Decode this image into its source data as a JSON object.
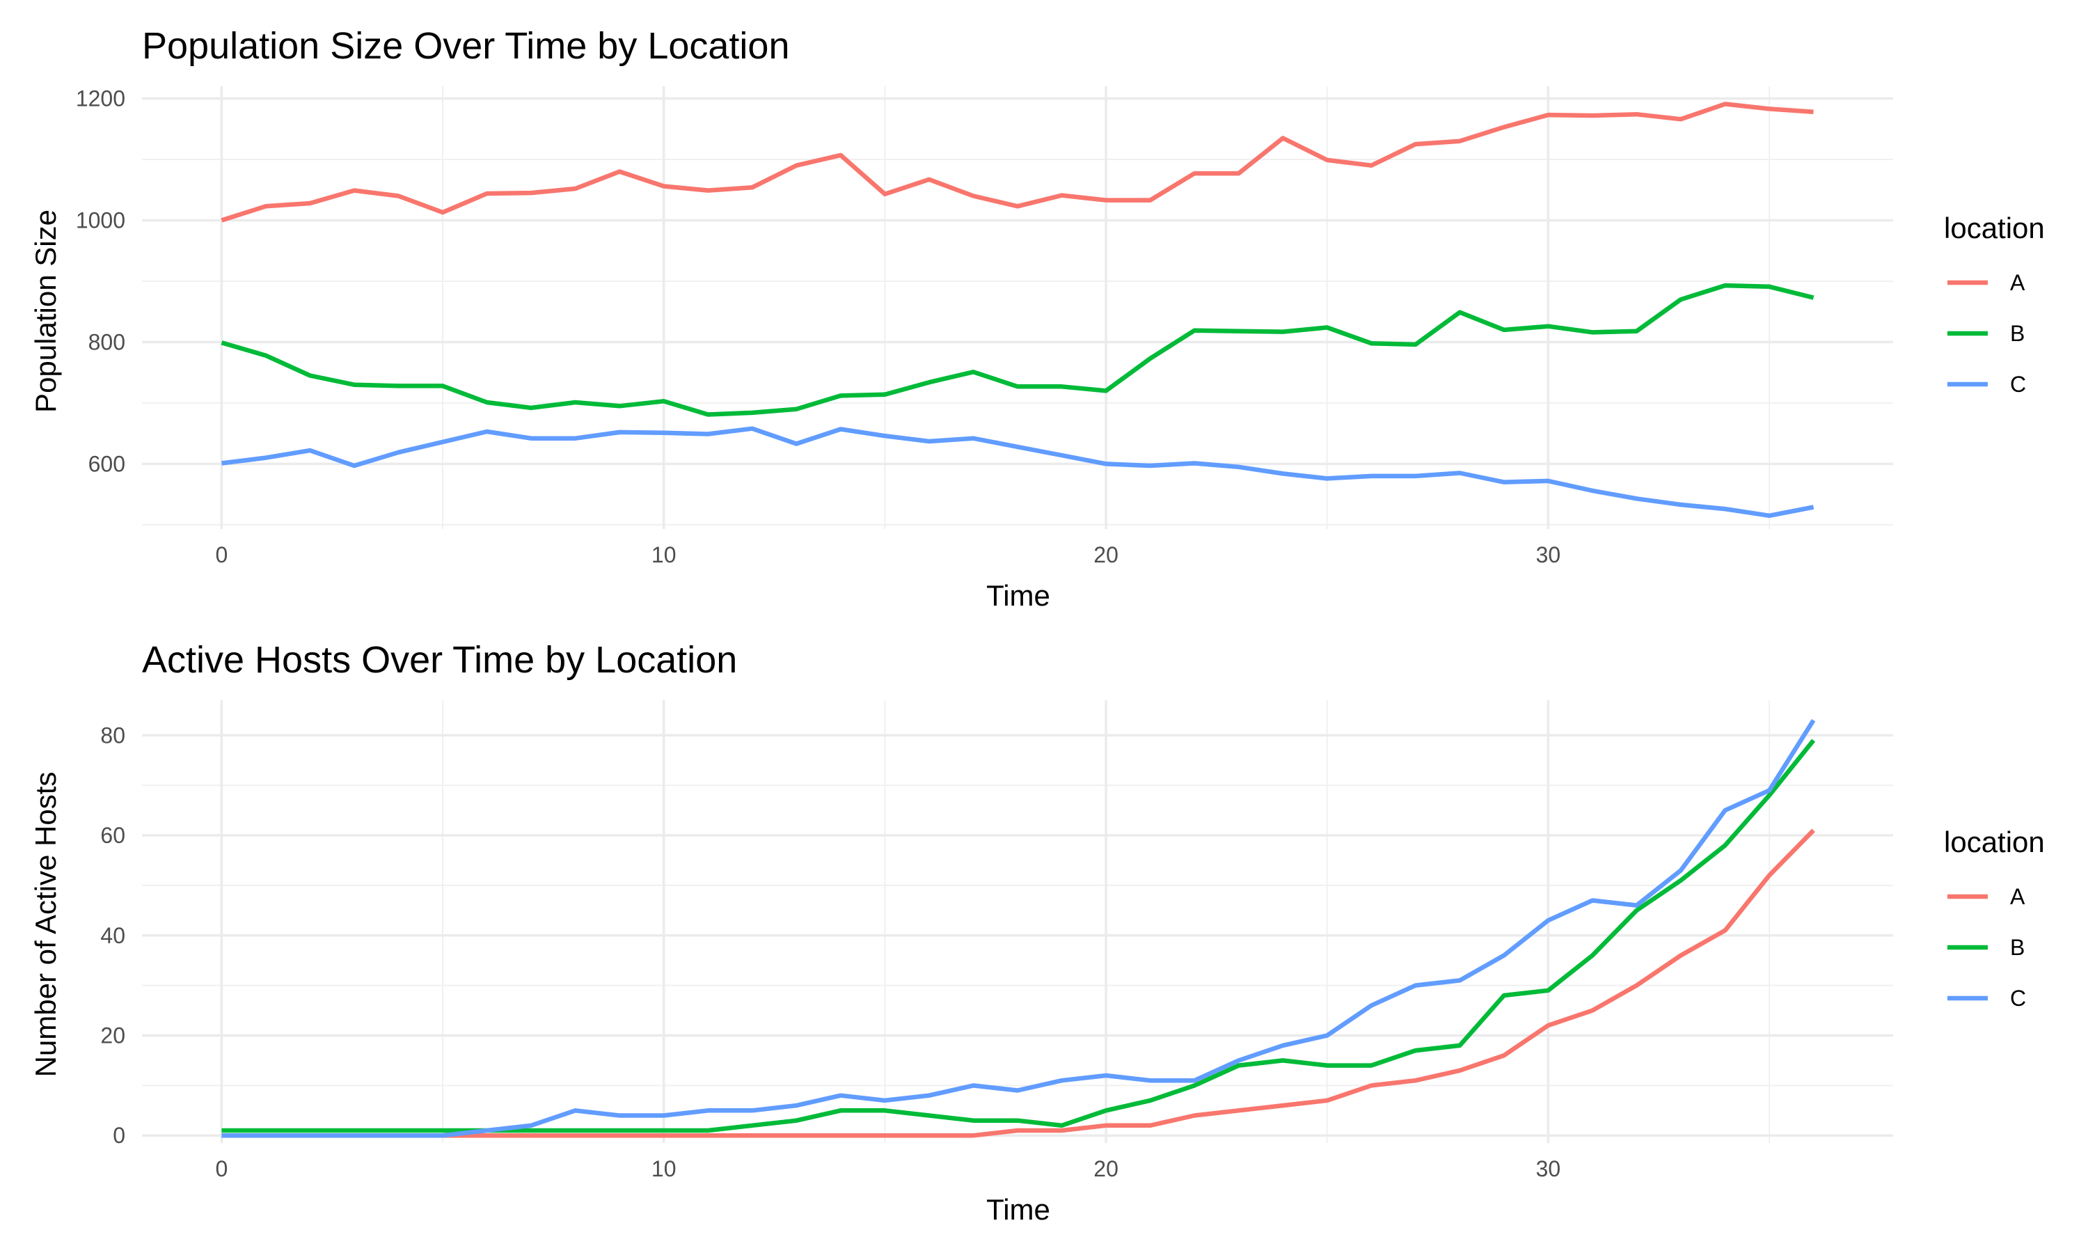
{
  "chart_data": [
    {
      "type": "line",
      "title": "Population Size Over Time by Location",
      "xlabel": "Time",
      "ylabel": "Population Size",
      "xlim": [
        -1.8,
        37.8
      ],
      "ylim": [
        493,
        1220
      ],
      "x_ticks": [
        0,
        10,
        20,
        30
      ],
      "x_minor": [
        5,
        15,
        25,
        35
      ],
      "y_ticks": [
        600,
        800,
        1000,
        1200
      ],
      "y_minor": [
        500,
        700,
        900,
        1100
      ],
      "grid": true,
      "legend_title": "location",
      "legend_position": "right",
      "x": [
        0,
        1,
        2,
        3,
        4,
        5,
        6,
        7,
        8,
        9,
        10,
        11,
        12,
        13,
        14,
        15,
        16,
        17,
        18,
        19,
        20,
        21,
        22,
        23,
        24,
        25,
        26,
        27,
        28,
        29,
        30,
        31,
        32,
        33,
        34,
        35,
        36
      ],
      "series": [
        {
          "name": "A",
          "color": "#F8766D",
          "values": [
            1000,
            1023,
            1028,
            1049,
            1040,
            1013,
            1044,
            1045,
            1052,
            1080,
            1056,
            1049,
            1054,
            1090,
            1107,
            1043,
            1067,
            1040,
            1023,
            1041,
            1033,
            1033,
            1077,
            1077,
            1135,
            1099,
            1090,
            1125,
            1130,
            1153,
            1173,
            1172,
            1174,
            1166,
            1191,
            1183,
            1178
          ]
        },
        {
          "name": "B",
          "color": "#00BA38",
          "values": [
            799,
            778,
            745,
            730,
            728,
            728,
            701,
            692,
            701,
            695,
            703,
            681,
            684,
            690,
            712,
            714,
            734,
            751,
            727,
            727,
            720,
            773,
            819,
            818,
            817,
            824,
            798,
            796,
            849,
            820,
            826,
            816,
            818,
            870,
            893,
            891,
            873
          ]
        },
        {
          "name": "C",
          "color": "#619CFF",
          "values": [
            601,
            610,
            622,
            597,
            619,
            636,
            653,
            642,
            642,
            652,
            651,
            649,
            658,
            633,
            657,
            646,
            637,
            642,
            628,
            614,
            600,
            597,
            601,
            595,
            584,
            576,
            580,
            580,
            585,
            570,
            572,
            556,
            543,
            533,
            526,
            515,
            529
          ]
        }
      ]
    },
    {
      "type": "line",
      "title": "Active Hosts Over Time by Location",
      "xlabel": "Time",
      "ylabel": "Number of Active Hosts",
      "xlim": [
        -1.8,
        37.8
      ],
      "ylim": [
        -1.5,
        87
      ],
      "x_ticks": [
        0,
        10,
        20,
        30
      ],
      "x_minor": [
        5,
        15,
        25,
        35
      ],
      "y_ticks": [
        0,
        20,
        40,
        60,
        80
      ],
      "y_minor": [
        10,
        30,
        50,
        70
      ],
      "grid": true,
      "legend_title": "location",
      "legend_position": "right",
      "x": [
        0,
        1,
        2,
        3,
        4,
        5,
        6,
        7,
        8,
        9,
        10,
        11,
        12,
        13,
        14,
        15,
        16,
        17,
        18,
        19,
        20,
        21,
        22,
        23,
        24,
        25,
        26,
        27,
        28,
        29,
        30,
        31,
        32,
        33,
        34,
        35,
        36
      ],
      "series": [
        {
          "name": "A",
          "color": "#F8766D",
          "values": [
            0,
            0,
            0,
            0,
            0,
            0,
            0,
            0,
            0,
            0,
            0,
            0,
            0,
            0,
            0,
            0,
            0,
            0,
            1,
            1,
            2,
            2,
            4,
            5,
            6,
            7,
            10,
            11,
            13,
            16,
            22,
            25,
            30,
            36,
            41,
            52,
            61
          ]
        },
        {
          "name": "B",
          "color": "#00BA38",
          "values": [
            1,
            1,
            1,
            1,
            1,
            1,
            1,
            1,
            1,
            1,
            1,
            1,
            2,
            3,
            5,
            5,
            4,
            3,
            3,
            2,
            5,
            7,
            10,
            14,
            15,
            14,
            14,
            17,
            18,
            28,
            29,
            36,
            45,
            51,
            58,
            68,
            79
          ]
        },
        {
          "name": "C",
          "color": "#619CFF",
          "values": [
            0,
            0,
            0,
            0,
            0,
            0,
            1,
            2,
            5,
            4,
            4,
            5,
            5,
            6,
            8,
            7,
            8,
            10,
            9,
            11,
            12,
            11,
            11,
            15,
            18,
            20,
            26,
            30,
            31,
            36,
            43,
            47,
            46,
            53,
            65,
            69,
            83
          ]
        }
      ]
    }
  ]
}
